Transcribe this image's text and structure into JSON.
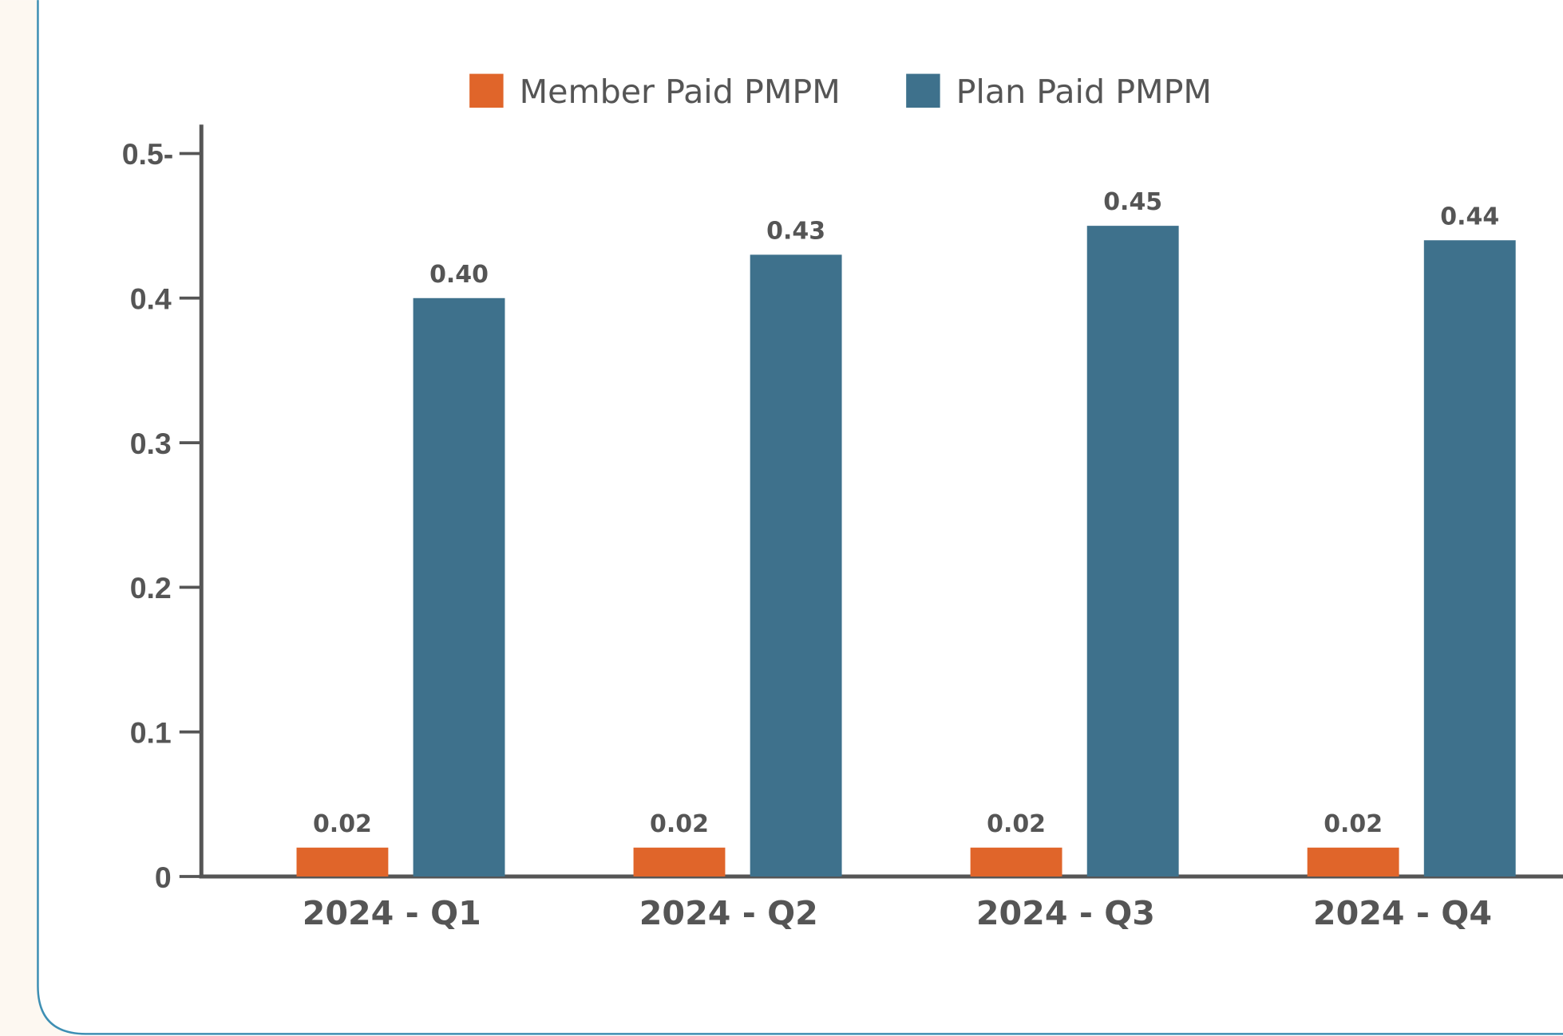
{
  "chart_data": {
    "type": "bar",
    "categories": [
      "2024 - Q1",
      "2024 - Q2",
      "2024 - Q3",
      "2024 - Q4"
    ],
    "series": [
      {
        "name": "Member Paid PMPM",
        "color": "#e0652a",
        "values": [
          0.02,
          0.02,
          0.02,
          0.02
        ],
        "value_labels": [
          "0.02",
          "0.02",
          "0.02",
          "0.02"
        ]
      },
      {
        "name": "Plan Paid PMPM",
        "color": "#3e718c",
        "values": [
          0.4,
          0.43,
          0.45,
          0.44
        ],
        "value_labels": [
          "0.40",
          "0.43",
          "0.45",
          "0.44"
        ]
      }
    ],
    "ylim": [
      0,
      0.52
    ],
    "yticks": [
      0,
      0.1,
      0.2,
      0.3,
      0.4,
      {
        "value": 0.5,
        "label": "0.5-"
      }
    ]
  }
}
